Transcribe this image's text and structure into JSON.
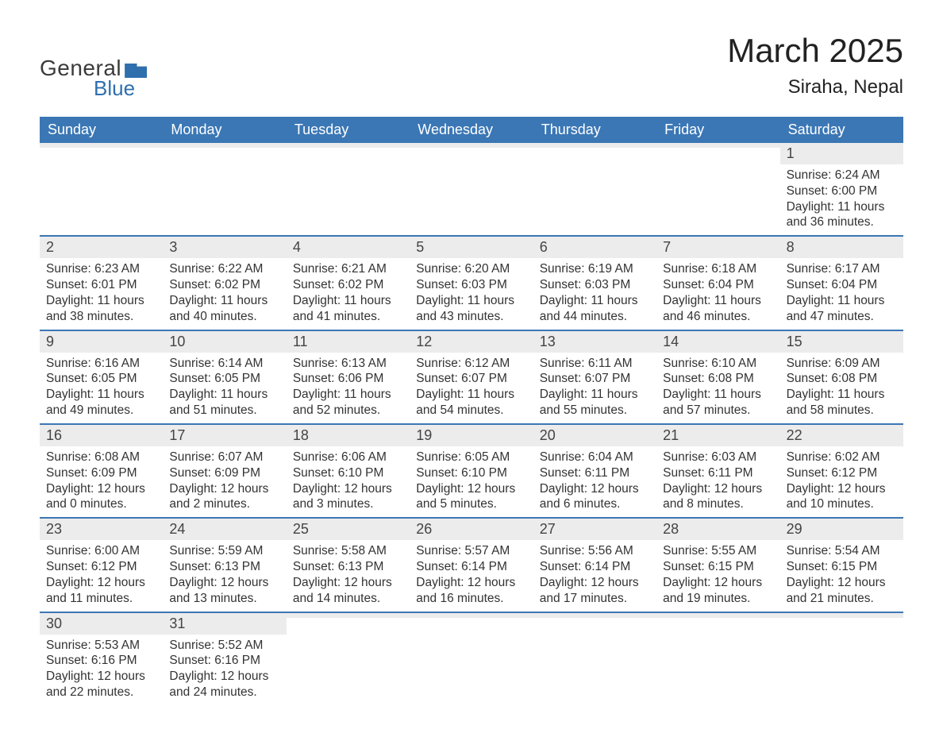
{
  "logo": {
    "text_general": "General",
    "text_blue": "Blue",
    "accent_color": "#2f6fae"
  },
  "title": "March 2025",
  "location": "Siraha, Nepal",
  "header_bg": "#3b77b5",
  "header_fg": "#ffffff",
  "daynum_bg": "#ececec",
  "row_border_color": "#3b77b5",
  "text_color": "#333333",
  "day_names": [
    "Sunday",
    "Monday",
    "Tuesday",
    "Wednesday",
    "Thursday",
    "Friday",
    "Saturday"
  ],
  "weeks": [
    [
      null,
      null,
      null,
      null,
      null,
      null,
      {
        "n": "1",
        "sr": "Sunrise: 6:24 AM",
        "ss": "Sunset: 6:00 PM",
        "dl": "Daylight: 11 hours and 36 minutes."
      }
    ],
    [
      {
        "n": "2",
        "sr": "Sunrise: 6:23 AM",
        "ss": "Sunset: 6:01 PM",
        "dl": "Daylight: 11 hours and 38 minutes."
      },
      {
        "n": "3",
        "sr": "Sunrise: 6:22 AM",
        "ss": "Sunset: 6:02 PM",
        "dl": "Daylight: 11 hours and 40 minutes."
      },
      {
        "n": "4",
        "sr": "Sunrise: 6:21 AM",
        "ss": "Sunset: 6:02 PM",
        "dl": "Daylight: 11 hours and 41 minutes."
      },
      {
        "n": "5",
        "sr": "Sunrise: 6:20 AM",
        "ss": "Sunset: 6:03 PM",
        "dl": "Daylight: 11 hours and 43 minutes."
      },
      {
        "n": "6",
        "sr": "Sunrise: 6:19 AM",
        "ss": "Sunset: 6:03 PM",
        "dl": "Daylight: 11 hours and 44 minutes."
      },
      {
        "n": "7",
        "sr": "Sunrise: 6:18 AM",
        "ss": "Sunset: 6:04 PM",
        "dl": "Daylight: 11 hours and 46 minutes."
      },
      {
        "n": "8",
        "sr": "Sunrise: 6:17 AM",
        "ss": "Sunset: 6:04 PM",
        "dl": "Daylight: 11 hours and 47 minutes."
      }
    ],
    [
      {
        "n": "9",
        "sr": "Sunrise: 6:16 AM",
        "ss": "Sunset: 6:05 PM",
        "dl": "Daylight: 11 hours and 49 minutes."
      },
      {
        "n": "10",
        "sr": "Sunrise: 6:14 AM",
        "ss": "Sunset: 6:05 PM",
        "dl": "Daylight: 11 hours and 51 minutes."
      },
      {
        "n": "11",
        "sr": "Sunrise: 6:13 AM",
        "ss": "Sunset: 6:06 PM",
        "dl": "Daylight: 11 hours and 52 minutes."
      },
      {
        "n": "12",
        "sr": "Sunrise: 6:12 AM",
        "ss": "Sunset: 6:07 PM",
        "dl": "Daylight: 11 hours and 54 minutes."
      },
      {
        "n": "13",
        "sr": "Sunrise: 6:11 AM",
        "ss": "Sunset: 6:07 PM",
        "dl": "Daylight: 11 hours and 55 minutes."
      },
      {
        "n": "14",
        "sr": "Sunrise: 6:10 AM",
        "ss": "Sunset: 6:08 PM",
        "dl": "Daylight: 11 hours and 57 minutes."
      },
      {
        "n": "15",
        "sr": "Sunrise: 6:09 AM",
        "ss": "Sunset: 6:08 PM",
        "dl": "Daylight: 11 hours and 58 minutes."
      }
    ],
    [
      {
        "n": "16",
        "sr": "Sunrise: 6:08 AM",
        "ss": "Sunset: 6:09 PM",
        "dl": "Daylight: 12 hours and 0 minutes."
      },
      {
        "n": "17",
        "sr": "Sunrise: 6:07 AM",
        "ss": "Sunset: 6:09 PM",
        "dl": "Daylight: 12 hours and 2 minutes."
      },
      {
        "n": "18",
        "sr": "Sunrise: 6:06 AM",
        "ss": "Sunset: 6:10 PM",
        "dl": "Daylight: 12 hours and 3 minutes."
      },
      {
        "n": "19",
        "sr": "Sunrise: 6:05 AM",
        "ss": "Sunset: 6:10 PM",
        "dl": "Daylight: 12 hours and 5 minutes."
      },
      {
        "n": "20",
        "sr": "Sunrise: 6:04 AM",
        "ss": "Sunset: 6:11 PM",
        "dl": "Daylight: 12 hours and 6 minutes."
      },
      {
        "n": "21",
        "sr": "Sunrise: 6:03 AM",
        "ss": "Sunset: 6:11 PM",
        "dl": "Daylight: 12 hours and 8 minutes."
      },
      {
        "n": "22",
        "sr": "Sunrise: 6:02 AM",
        "ss": "Sunset: 6:12 PM",
        "dl": "Daylight: 12 hours and 10 minutes."
      }
    ],
    [
      {
        "n": "23",
        "sr": "Sunrise: 6:00 AM",
        "ss": "Sunset: 6:12 PM",
        "dl": "Daylight: 12 hours and 11 minutes."
      },
      {
        "n": "24",
        "sr": "Sunrise: 5:59 AM",
        "ss": "Sunset: 6:13 PM",
        "dl": "Daylight: 12 hours and 13 minutes."
      },
      {
        "n": "25",
        "sr": "Sunrise: 5:58 AM",
        "ss": "Sunset: 6:13 PM",
        "dl": "Daylight: 12 hours and 14 minutes."
      },
      {
        "n": "26",
        "sr": "Sunrise: 5:57 AM",
        "ss": "Sunset: 6:14 PM",
        "dl": "Daylight: 12 hours and 16 minutes."
      },
      {
        "n": "27",
        "sr": "Sunrise: 5:56 AM",
        "ss": "Sunset: 6:14 PM",
        "dl": "Daylight: 12 hours and 17 minutes."
      },
      {
        "n": "28",
        "sr": "Sunrise: 5:55 AM",
        "ss": "Sunset: 6:15 PM",
        "dl": "Daylight: 12 hours and 19 minutes."
      },
      {
        "n": "29",
        "sr": "Sunrise: 5:54 AM",
        "ss": "Sunset: 6:15 PM",
        "dl": "Daylight: 12 hours and 21 minutes."
      }
    ],
    [
      {
        "n": "30",
        "sr": "Sunrise: 5:53 AM",
        "ss": "Sunset: 6:16 PM",
        "dl": "Daylight: 12 hours and 22 minutes."
      },
      {
        "n": "31",
        "sr": "Sunrise: 5:52 AM",
        "ss": "Sunset: 6:16 PM",
        "dl": "Daylight: 12 hours and 24 minutes."
      },
      null,
      null,
      null,
      null,
      null
    ]
  ]
}
